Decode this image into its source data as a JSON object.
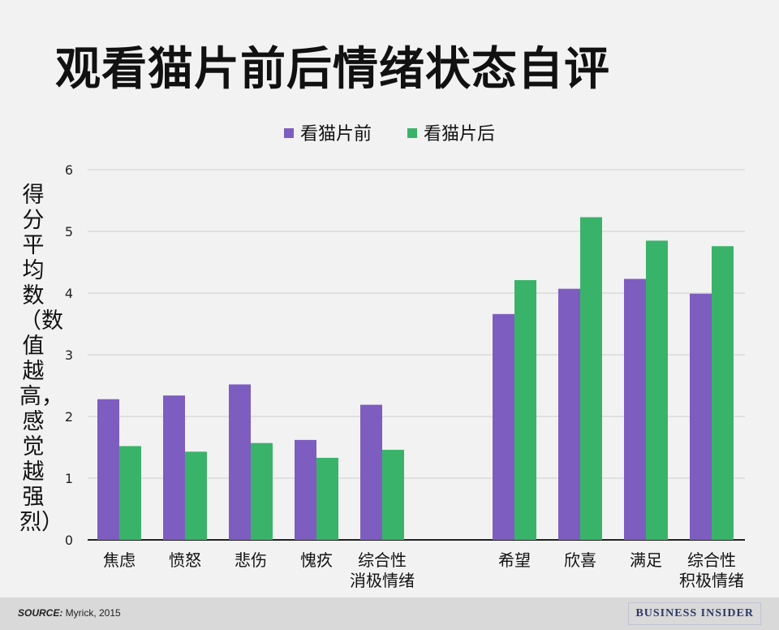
{
  "chart_data": {
    "type": "bar",
    "title": "观看猫片前后情绪状态自评",
    "ylabel": "得分平均数（数值越高，感觉越强烈）",
    "xlabel": "",
    "ylim": [
      0,
      6
    ],
    "yticks": [
      "0",
      "1",
      "2",
      "3",
      "4",
      "5",
      "6"
    ],
    "grid": true,
    "legend_position": "top-center",
    "categories": [
      "焦虑",
      "愤怒",
      "悲伤",
      "愧疚",
      "综合性\n消极情绪",
      "希望",
      "欣喜",
      "满足",
      "综合性\n积极情绪"
    ],
    "series": [
      {
        "name": "看猫片前",
        "color": "#7e5dc0",
        "values": [
          2.28,
          2.34,
          2.52,
          1.62,
          2.19,
          3.66,
          4.07,
          4.23,
          3.99
        ]
      },
      {
        "name": "看猫片后",
        "color": "#3ab36a",
        "values": [
          1.52,
          1.43,
          1.57,
          1.33,
          1.46,
          4.21,
          5.23,
          4.85,
          4.76
        ]
      }
    ]
  },
  "footer": {
    "source_label": "SOURCE:",
    "source_text": " Myrick, 2015",
    "brand": "BUSINESS INSIDER"
  }
}
